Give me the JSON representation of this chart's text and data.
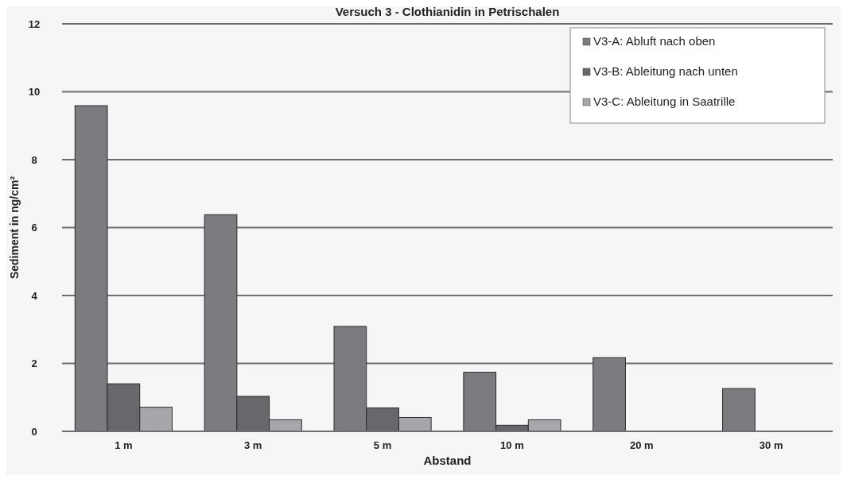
{
  "chart_data": {
    "type": "bar",
    "title": "Versuch 3 - Clothianidin in Petrischalen",
    "xlabel": "Abstand",
    "ylabel": "Sediment in ng/cm²",
    "categories": [
      "1 m",
      "3 m",
      "5 m",
      "10 m",
      "20 m",
      "30 m"
    ],
    "series": [
      {
        "name": "V3-A: Abluft nach oben",
        "color": "#7b7c80",
        "values": [
          9.59,
          6.38,
          3.09,
          1.74,
          2.17,
          1.26
        ]
      },
      {
        "name": "V3-B: Ableitung nach unten",
        "color": "#67686c",
        "values": [
          1.4,
          1.03,
          0.69,
          0.18,
          null,
          null
        ]
      },
      {
        "name": "V3-C: Ableitung in Saatrille",
        "color": "#a6a7aa",
        "values": [
          0.71,
          0.34,
          0.41,
          0.34,
          null,
          null
        ]
      }
    ],
    "ylim": [
      0,
      12
    ],
    "yticks": [
      0,
      2,
      4,
      6,
      8,
      10,
      12
    ],
    "grid": "y",
    "legend": "top right"
  }
}
